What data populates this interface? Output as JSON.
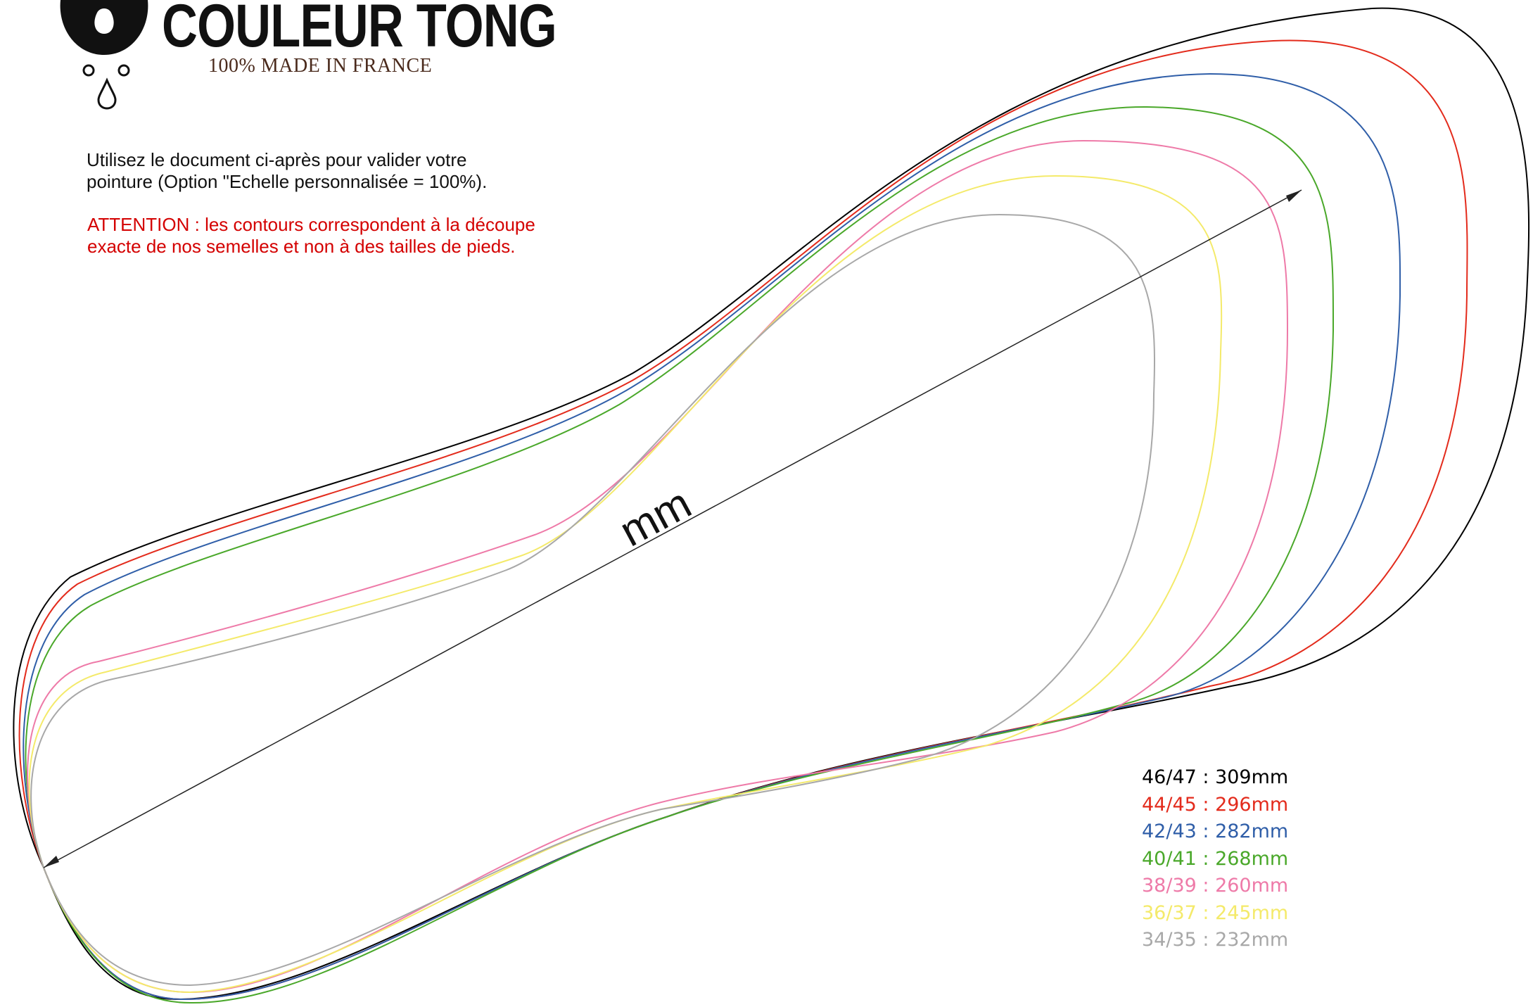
{
  "brand": {
    "name": "COULEUR TONG",
    "tagline": "100% MADE IN FRANCE",
    "logo_icon": "flower-drops-logo"
  },
  "instructions": {
    "intro_line1": "Utilisez le document ci-après pour valider votre",
    "intro_line2": "pointure (Option \"Echelle personnalisée = 100%).",
    "warning_line1": "ATTENTION : les contours correspondent à la découpe",
    "warning_line2": "exacte de nos semelles et non à des tailles de pieds.",
    "warning_color": "#d40000"
  },
  "measure": {
    "label": "mm"
  },
  "sizes": [
    {
      "label": "46/47 : 309mm",
      "color": "#000000"
    },
    {
      "label": "44/45 : 296mm",
      "color": "#e32b1c"
    },
    {
      "label": "42/43 : 282mm",
      "color": "#2f5ea8"
    },
    {
      "label": "40/41 : 268mm",
      "color": "#4aa82a"
    },
    {
      "label": "38/39 : 260mm",
      "color": "#ee7aa8"
    },
    {
      "label": "36/37 : 245mm",
      "color": "#f4ea6a"
    },
    {
      "label": "34/35 : 232mm",
      "color": "#a8a8a8"
    }
  ]
}
